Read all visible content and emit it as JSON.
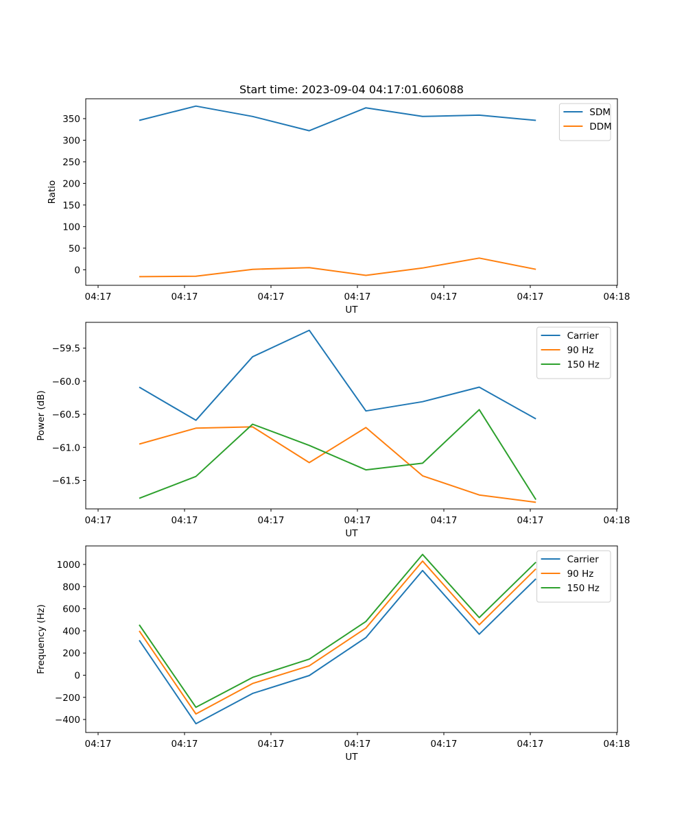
{
  "figure_title": "Start time: 2023-09-04 04:17:01.606088",
  "chart_data": [
    {
      "type": "line",
      "title": "Start time: 2023-09-04 04:17:01.606088",
      "xlabel": "UT",
      "ylabel": "Ratio",
      "x": [
        0,
        1,
        2,
        3,
        4,
        5,
        6,
        7
      ],
      "x_tick_labels": [
        "04:17",
        "04:17",
        "04:17",
        "04:17",
        "04:17",
        "04:17",
        "04:18"
      ],
      "ylim": [
        -36,
        396
      ],
      "y_ticks": [
        0,
        50,
        100,
        150,
        200,
        250,
        300,
        350
      ],
      "legend": "top-right",
      "series": [
        {
          "name": "SDM",
          "color": "#1f77b4",
          "values": [
            346,
            379,
            355,
            322,
            375,
            355,
            358,
            346
          ]
        },
        {
          "name": "DDM",
          "color": "#ff7f0e",
          "values": [
            -16,
            -15,
            1,
            5,
            -13,
            4,
            27,
            1
          ]
        }
      ]
    },
    {
      "type": "line",
      "xlabel": "UT",
      "ylabel": "Power (dB)",
      "x": [
        0,
        1,
        2,
        3,
        4,
        5,
        6,
        7
      ],
      "x_tick_labels": [
        "04:17",
        "04:17",
        "04:17",
        "04:17",
        "04:17",
        "04:17",
        "04:18"
      ],
      "ylim": [
        -61.93,
        -59.11
      ],
      "y_ticks": [
        -61.5,
        -61.0,
        -60.5,
        -60.0,
        -59.5
      ],
      "y_tick_labels": [
        "−61.5",
        "−61.0",
        "−60.5",
        "−60.0",
        "−59.5"
      ],
      "legend": "top-right",
      "series": [
        {
          "name": "Carrier",
          "color": "#1f77b4",
          "values": [
            -60.09,
            -60.59,
            -59.63,
            -59.23,
            -60.45,
            -60.31,
            -60.09,
            -60.57
          ]
        },
        {
          "name": "90 Hz",
          "color": "#ff7f0e",
          "values": [
            -60.95,
            -60.71,
            -60.69,
            -61.23,
            -60.7,
            -61.43,
            -61.72,
            -61.83
          ]
        },
        {
          "name": "150 Hz",
          "color": "#2ca02c",
          "values": [
            -61.77,
            -61.44,
            -60.65,
            -60.97,
            -61.34,
            -61.24,
            -60.43,
            -61.79
          ]
        }
      ]
    },
    {
      "type": "line",
      "xlabel": "UT",
      "ylabel": "Frequency (Hz)",
      "x": [
        0,
        1,
        2,
        3,
        4,
        5,
        6,
        7
      ],
      "x_tick_labels": [
        "04:17",
        "04:17",
        "04:17",
        "04:17",
        "04:17",
        "04:17",
        "04:18"
      ],
      "ylim": [
        -517,
        1167
      ],
      "y_ticks": [
        -400,
        -200,
        0,
        200,
        400,
        600,
        800,
        1000
      ],
      "y_tick_labels": [
        "−400",
        "−200",
        "0",
        "200",
        "400",
        "600",
        "800",
        "1000"
      ],
      "legend": "top-right",
      "series": [
        {
          "name": "Carrier",
          "color": "#1f77b4",
          "values": [
            315,
            -438,
            -165,
            -3,
            340,
            945,
            370,
            870
          ]
        },
        {
          "name": "90 Hz",
          "color": "#ff7f0e",
          "values": [
            400,
            -350,
            -75,
            85,
            425,
            1030,
            455,
            960
          ]
        },
        {
          "name": "150 Hz",
          "color": "#2ca02c",
          "values": [
            455,
            -290,
            -20,
            145,
            485,
            1090,
            520,
            1020
          ]
        }
      ]
    }
  ]
}
